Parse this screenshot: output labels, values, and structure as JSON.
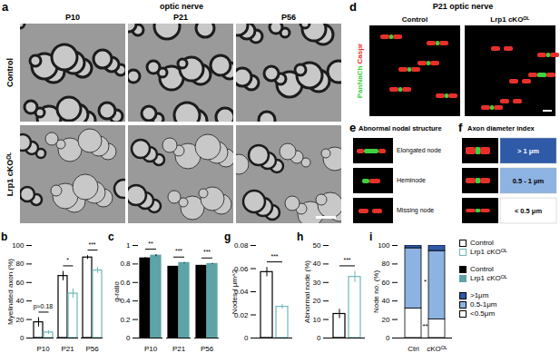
{
  "figure": {
    "a": {
      "letter": "a",
      "title": "optic nerve",
      "columns": [
        "P10",
        "P21",
        "P56"
      ],
      "rows": [
        "Control",
        "Lrp1 cKOᴼᴸ"
      ]
    },
    "d": {
      "letter": "d",
      "title": "P21 optic nerve",
      "columns": [
        "Control",
        "Lrp1 cKOᴼᴸ"
      ],
      "channels": [
        {
          "label": "PanNaCh",
          "color": "#3fd13f"
        },
        {
          "label": "Caspr",
          "color": "#e8302a"
        }
      ]
    },
    "e": {
      "letter": "e",
      "title": "Abnormal nodal structure",
      "rows": [
        "Elongated node",
        "Heminode",
        "Missing node"
      ]
    },
    "f": {
      "letter": "f",
      "title": "Axon diameter index",
      "rows": [
        {
          "label": "> 1 μm",
          "color": "#2e5aa8"
        },
        {
          "label": "0.5 - 1 μm",
          "color": "#8db3e2"
        },
        {
          "label": "< 0.5 μm",
          "color": "#ffffff"
        }
      ]
    }
  },
  "chart_data": [
    {
      "panel": "b",
      "type": "bar",
      "ylabel": "Myelinated axon (%)",
      "marker": "open",
      "categories": [
        "P10",
        "P21",
        "P56"
      ],
      "series": [
        {
          "name": "Control",
          "color": "#000000",
          "values": [
            17,
            67,
            87
          ],
          "errors": [
            5,
            5,
            2
          ]
        },
        {
          "name": "Lrp1 cKOᴼᴸ",
          "color": "#6fb7b7",
          "values": [
            6,
            48,
            73
          ],
          "errors": [
            2,
            5,
            3
          ]
        }
      ],
      "ylim": [
        0,
        100
      ],
      "yticks": [
        0,
        20,
        40,
        60,
        80,
        100
      ],
      "annotations": [
        {
          "category": "P10",
          "text": "p≈0.18"
        },
        {
          "category": "P21",
          "text": "*"
        },
        {
          "category": "P56",
          "text": "***"
        }
      ]
    },
    {
      "panel": "c",
      "type": "bar",
      "ylabel": "g-ratio",
      "marker": "filled",
      "categories": [
        "P10",
        "P21",
        "P56"
      ],
      "series": [
        {
          "name": "Control",
          "color": "#000000",
          "values": [
            0.86,
            0.77,
            0.78
          ],
          "errors": [
            0.01,
            0.005,
            0.005
          ]
        },
        {
          "name": "Lrp1 cKOᴼᴸ",
          "color": "#5ea3a8",
          "values": [
            0.89,
            0.81,
            0.8
          ],
          "errors": [
            0.01,
            0.005,
            0.005
          ]
        }
      ],
      "ylim": [
        0,
        1
      ],
      "yticks": [
        0,
        0.2,
        0.4,
        0.6,
        0.8,
        1
      ],
      "annotations": [
        {
          "category": "P10",
          "text": "**"
        },
        {
          "category": "P21",
          "text": "***"
        },
        {
          "category": "P56",
          "text": "***"
        }
      ]
    },
    {
      "panel": "g",
      "type": "bar",
      "ylabel": "Nodes / μm^2",
      "marker": "open",
      "categories": [
        null,
        null
      ],
      "values": [
        0.057,
        0.027
      ],
      "errors": [
        0.004,
        0.002
      ],
      "colors": [
        "#000000",
        "#6fb7b7"
      ],
      "ylim": [
        0,
        0.08
      ],
      "yticks": [
        0,
        0.02,
        0.04,
        0.06,
        0.08
      ],
      "annotations": [
        {
          "text": "***"
        }
      ]
    },
    {
      "panel": "h",
      "type": "bar",
      "ylabel": "Abnormal node (%)",
      "marker": "open",
      "categories": [
        null,
        null
      ],
      "values": [
        13,
        33
      ],
      "errors": [
        2.5,
        3
      ],
      "colors": [
        "#000000",
        "#6fb7b7"
      ],
      "ylim": [
        0,
        50
      ],
      "yticks": [
        0,
        10,
        20,
        30,
        40,
        50
      ],
      "annotations": [
        {
          "text": "***"
        }
      ]
    },
    {
      "panel": "i",
      "type": "bar",
      "stacked": true,
      "ylabel": "Node no. (%)",
      "marker": "filled",
      "categories": [
        "Ctrl",
        "cKOᴼᴸ"
      ],
      "series": [
        {
          "name": "<0.5μm",
          "color": "#ffffff",
          "values": [
            32,
            20
          ]
        },
        {
          "name": "0.5-1μm",
          "color": "#8db3e2",
          "values": [
            65,
            74
          ]
        },
        {
          "name": ">1μm",
          "color": "#2e5aa8",
          "values": [
            3,
            6
          ]
        }
      ],
      "ylim": [
        0,
        100
      ],
      "yticks": [
        0,
        20,
        40,
        60,
        80,
        100
      ],
      "annotations": [
        {
          "series": "0.5-1μm",
          "text": "*"
        },
        {
          "series": "<0.5μm",
          "text": "**"
        }
      ]
    }
  ]
}
